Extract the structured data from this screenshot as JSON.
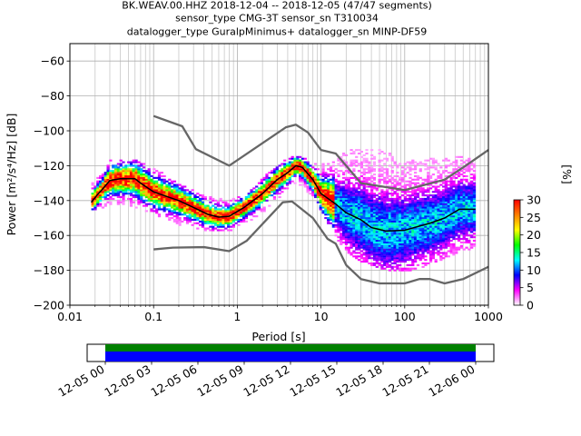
{
  "chart_data": [
    {
      "type": "heatmap",
      "title_lines": [
        "BK.WEAV.00.HHZ   2018-12-04 -- 2018-12-05  (47/47 segments)",
        "sensor_type CMG-3T sensor_sn T310034",
        "datalogger_type GuralpMinimus+ datalogger_sn MINP-DF59"
      ],
      "xlabel": "Period [s]",
      "ylabel": "Power [m²/s⁴/Hz] [dB]",
      "x_scale": "log",
      "xlim": [
        0.01,
        1000
      ],
      "ylim": [
        -200,
        -50
      ],
      "x_ticks": [
        {
          "v": 0.01,
          "label": "0.01"
        },
        {
          "v": 0.1,
          "label": "0.1"
        },
        {
          "v": 1,
          "label": "1"
        },
        {
          "v": 10,
          "label": "10"
        },
        {
          "v": 100,
          "label": "100"
        },
        {
          "v": 1000,
          "label": "1000"
        }
      ],
      "y_ticks": [
        -200,
        -180,
        -160,
        -140,
        -120,
        -100,
        -80,
        -60
      ],
      "grid": true,
      "colorbar": {
        "label": "[%]",
        "ticks": [
          0,
          5,
          10,
          15,
          20,
          25,
          30
        ],
        "range": [
          0,
          30
        ],
        "colors": [
          "#ffffff",
          "#ff00ff",
          "#0000ff",
          "#00ffff",
          "#00ff00",
          "#ffff00",
          "#ff7f00",
          "#ff0000"
        ]
      },
      "noise_model_high": [
        [
          0.1,
          -91.5
        ],
        [
          0.22,
          -97.4
        ],
        [
          0.32,
          -110.5
        ],
        [
          0.8,
          -120
        ],
        [
          3.8,
          -98
        ],
        [
          5,
          -96.5
        ],
        [
          7,
          -101
        ],
        [
          10,
          -111
        ],
        [
          15,
          -113
        ],
        [
          30,
          -130
        ],
        [
          100,
          -134
        ],
        [
          300,
          -128
        ],
        [
          500,
          -121
        ],
        [
          1000,
          -111
        ]
      ],
      "noise_model_low": [
        [
          0.1,
          -168
        ],
        [
          0.17,
          -167
        ],
        [
          0.4,
          -166.7
        ],
        [
          0.8,
          -169
        ],
        [
          1.3,
          -163
        ],
        [
          3.5,
          -141
        ],
        [
          4.5,
          -140.5
        ],
        [
          8,
          -150
        ],
        [
          12,
          -162
        ],
        [
          15,
          -164.7
        ],
        [
          20,
          -177
        ],
        [
          30,
          -185
        ],
        [
          50,
          -187.5
        ],
        [
          100,
          -187.5
        ],
        [
          150,
          -185
        ],
        [
          200,
          -185
        ],
        [
          300,
          -187.5
        ],
        [
          500,
          -185
        ],
        [
          1000,
          -178
        ]
      ],
      "mode_line": [
        [
          0.018,
          -141
        ],
        [
          0.021,
          -137
        ],
        [
          0.025,
          -133
        ],
        [
          0.03,
          -128.5
        ],
        [
          0.04,
          -127.5
        ],
        [
          0.06,
          -127.5
        ],
        [
          0.07,
          -130
        ],
        [
          0.1,
          -135
        ],
        [
          0.15,
          -138
        ],
        [
          0.2,
          -140
        ],
        [
          0.3,
          -144
        ],
        [
          0.45,
          -148
        ],
        [
          0.6,
          -149.5
        ],
        [
          0.8,
          -149
        ],
        [
          1.2,
          -144
        ],
        [
          2,
          -136
        ],
        [
          3,
          -128
        ],
        [
          4,
          -124
        ],
        [
          5,
          -120
        ],
        [
          6,
          -121
        ],
        [
          8,
          -128
        ],
        [
          10,
          -136
        ],
        [
          15,
          -142
        ],
        [
          20,
          -147
        ],
        [
          30,
          -151
        ],
        [
          40,
          -155.5
        ],
        [
          60,
          -157.5
        ],
        [
          100,
          -157
        ],
        [
          200,
          -153
        ],
        [
          300,
          -150
        ],
        [
          450,
          -145
        ],
        [
          700,
          -145
        ]
      ],
      "density_band": [
        [
          0.018,
          -146,
          -131
        ],
        [
          0.025,
          -143,
          -125
        ],
        [
          0.03,
          -141,
          -118
        ],
        [
          0.05,
          -142,
          -117
        ],
        [
          0.07,
          -144,
          -118
        ],
        [
          0.1,
          -147,
          -122
        ],
        [
          0.15,
          -150,
          -127
        ],
        [
          0.2,
          -153,
          -131
        ],
        [
          0.3,
          -155,
          -135
        ],
        [
          0.5,
          -157,
          -139
        ],
        [
          0.8,
          -157,
          -141
        ],
        [
          1.2,
          -153,
          -137
        ],
        [
          2,
          -146,
          -128
        ],
        [
          3,
          -138,
          -120
        ],
        [
          4,
          -134,
          -117
        ],
        [
          5,
          -130,
          -115
        ],
        [
          6,
          -131,
          -116
        ],
        [
          8,
          -137,
          -119
        ],
        [
          10,
          -146,
          -120
        ],
        [
          15,
          -160,
          -118
        ],
        [
          20,
          -168,
          -112
        ],
        [
          30,
          -174,
          -110
        ],
        [
          50,
          -178,
          -112
        ],
        [
          80,
          -180,
          -115
        ],
        [
          100,
          -180,
          -118
        ],
        [
          200,
          -176,
          -117
        ],
        [
          400,
          -170,
          -116
        ],
        [
          700,
          -166,
          -115
        ]
      ],
      "coverage": {
        "x_ticks": [
          "12-05 00",
          "12-05 03",
          "12-05 06",
          "12-05 09",
          "12-05 12",
          "12-05 15",
          "12-05 18",
          "12-05 21",
          "12-06 00"
        ],
        "bar_colors": [
          "#008000",
          "#0000ff"
        ]
      }
    }
  ]
}
